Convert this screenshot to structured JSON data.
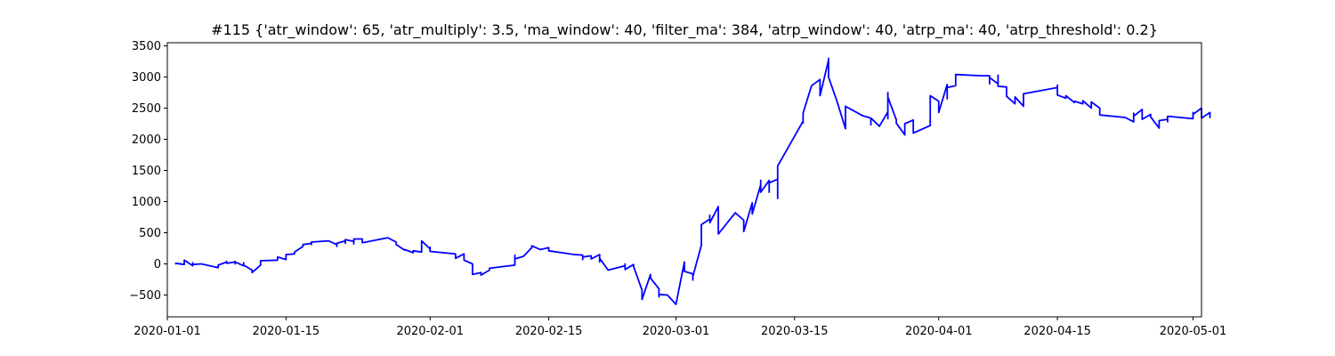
{
  "chart_data": {
    "type": "line",
    "title": "#115 {'atr_window': 65, 'atr_multiply': 3.5, 'ma_window': 40, 'filter_ma': 384, 'atrp_window': 40, 'atrp_ma': 40, 'atrp_threshold': 0.2}",
    "xlabel": "",
    "ylabel": "",
    "xlim": [
      "2020-01-01",
      "2020-05-02"
    ],
    "ylim": [
      -850,
      3550
    ],
    "grid": false,
    "x_ticks": [
      "2020-01-01",
      "2020-01-15",
      "2020-02-01",
      "2020-02-15",
      "2020-03-01",
      "2020-03-15",
      "2020-04-01",
      "2020-04-15",
      "2020-05-01"
    ],
    "y_ticks": [
      -500,
      0,
      500,
      1000,
      1500,
      2000,
      2500,
      3000,
      3500
    ],
    "colors": {
      "series": "#0000ff",
      "axis": "#000000",
      "background": "#ffffff"
    },
    "series": [
      {
        "color": "#0000ff",
        "points": [
          [
            "2020-01-02",
            0
          ],
          [
            "2020-01-02",
            10
          ],
          [
            "2020-01-03",
            -10
          ],
          [
            "2020-01-03",
            50
          ],
          [
            "2020-01-03",
            60
          ],
          [
            "2020-01-04",
            -30
          ],
          [
            "2020-01-04",
            20
          ],
          [
            "2020-01-04",
            -10
          ],
          [
            "2020-01-05",
            0
          ],
          [
            "2020-01-07",
            -60
          ],
          [
            "2020-01-07",
            -20
          ],
          [
            "2020-01-08",
            30
          ],
          [
            "2020-01-08",
            40
          ],
          [
            "2020-01-08",
            10
          ],
          [
            "2020-01-09",
            30
          ],
          [
            "2020-01-09",
            40
          ],
          [
            "2020-01-09",
            0
          ],
          [
            "2020-01-09",
            30
          ],
          [
            "2020-01-10",
            -30
          ],
          [
            "2020-01-10",
            20
          ],
          [
            "2020-01-10",
            -20
          ],
          [
            "2020-01-11",
            -100
          ],
          [
            "2020-01-11",
            -130
          ],
          [
            "2020-01-11",
            -140
          ],
          [
            "2020-01-12",
            -20
          ],
          [
            "2020-01-12",
            0
          ],
          [
            "2020-01-12",
            50
          ],
          [
            "2020-01-14",
            60
          ],
          [
            "2020-01-14",
            110
          ],
          [
            "2020-01-15",
            70
          ],
          [
            "2020-01-15",
            80
          ],
          [
            "2020-01-15",
            150
          ],
          [
            "2020-01-16",
            160
          ],
          [
            "2020-01-16",
            190
          ],
          [
            "2020-01-17",
            280
          ],
          [
            "2020-01-17",
            310
          ],
          [
            "2020-01-18",
            330
          ],
          [
            "2020-01-18",
            310
          ],
          [
            "2020-01-18",
            350
          ],
          [
            "2020-01-20",
            370
          ],
          [
            "2020-01-21",
            310
          ],
          [
            "2020-01-21",
            280
          ],
          [
            "2020-01-21",
            330
          ],
          [
            "2020-01-22",
            370
          ],
          [
            "2020-01-22",
            330
          ],
          [
            "2020-01-22",
            390
          ],
          [
            "2020-01-23",
            360
          ],
          [
            "2020-01-23",
            320
          ],
          [
            "2020-01-23",
            400
          ],
          [
            "2020-01-24",
            400
          ],
          [
            "2020-01-24",
            340
          ],
          [
            "2020-01-27",
            420
          ],
          [
            "2020-01-28",
            350
          ],
          [
            "2020-01-28",
            310
          ],
          [
            "2020-01-29",
            220
          ],
          [
            "2020-01-29",
            230
          ],
          [
            "2020-01-30",
            180
          ],
          [
            "2020-01-30",
            210
          ],
          [
            "2020-01-31",
            190
          ],
          [
            "2020-01-31",
            280
          ],
          [
            "2020-01-31",
            370
          ],
          [
            "2020-02-01",
            240
          ],
          [
            "2020-02-01",
            270
          ],
          [
            "2020-02-01",
            200
          ],
          [
            "2020-02-04",
            160
          ],
          [
            "2020-02-04",
            90
          ],
          [
            "2020-02-05",
            160
          ],
          [
            "2020-02-05",
            130
          ],
          [
            "2020-02-05",
            60
          ],
          [
            "2020-02-06",
            0
          ],
          [
            "2020-02-06",
            -100
          ],
          [
            "2020-02-06",
            -170
          ],
          [
            "2020-02-07",
            -140
          ],
          [
            "2020-02-07",
            -180
          ],
          [
            "2020-02-08",
            -100
          ],
          [
            "2020-02-08",
            -70
          ],
          [
            "2020-02-11",
            -20
          ],
          [
            "2020-02-11",
            120
          ],
          [
            "2020-02-11",
            140
          ],
          [
            "2020-02-11",
            80
          ],
          [
            "2020-02-12",
            120
          ],
          [
            "2020-02-13",
            260
          ],
          [
            "2020-02-13",
            290
          ],
          [
            "2020-02-14",
            230
          ],
          [
            "2020-02-15",
            260
          ],
          [
            "2020-02-15",
            210
          ],
          [
            "2020-02-18",
            150
          ],
          [
            "2020-02-19",
            140
          ],
          [
            "2020-02-19",
            70
          ],
          [
            "2020-02-19",
            110
          ],
          [
            "2020-02-20",
            130
          ],
          [
            "2020-02-20",
            80
          ],
          [
            "2020-02-21",
            150
          ],
          [
            "2020-02-21",
            30
          ],
          [
            "2020-02-21",
            90
          ],
          [
            "2020-02-22",
            -100
          ],
          [
            "2020-02-24",
            -30
          ],
          [
            "2020-02-24",
            0
          ],
          [
            "2020-02-24",
            -90
          ],
          [
            "2020-02-25",
            -10
          ],
          [
            "2020-02-25",
            -40
          ],
          [
            "2020-02-26",
            -420
          ],
          [
            "2020-02-26",
            -460
          ],
          [
            "2020-02-26",
            -570
          ],
          [
            "2020-02-27",
            -170
          ],
          [
            "2020-02-27",
            -230
          ],
          [
            "2020-02-28",
            -400
          ],
          [
            "2020-02-28",
            -530
          ],
          [
            "2020-02-28",
            -440
          ],
          [
            "2020-02-28",
            -490
          ],
          [
            "2020-02-29",
            -500
          ],
          [
            "2020-03-01",
            -650
          ],
          [
            "2020-03-02",
            30
          ],
          [
            "2020-03-02",
            -120
          ],
          [
            "2020-03-03",
            -160
          ],
          [
            "2020-03-03",
            -260
          ],
          [
            "2020-03-03",
            -200
          ],
          [
            "2020-03-04",
            300
          ],
          [
            "2020-03-04",
            350
          ],
          [
            "2020-03-04",
            380
          ],
          [
            "2020-03-04",
            630
          ],
          [
            "2020-03-05",
            720
          ],
          [
            "2020-03-05",
            780
          ],
          [
            "2020-03-05",
            660
          ],
          [
            "2020-03-06",
            920
          ],
          [
            "2020-03-06",
            800
          ],
          [
            "2020-03-06",
            480
          ],
          [
            "2020-03-08",
            820
          ],
          [
            "2020-03-09",
            700
          ],
          [
            "2020-03-09",
            520
          ],
          [
            "2020-03-10",
            980
          ],
          [
            "2020-03-10",
            800
          ],
          [
            "2020-03-11",
            1270
          ],
          [
            "2020-03-11",
            1340
          ],
          [
            "2020-03-11",
            1150
          ],
          [
            "2020-03-12",
            1340
          ],
          [
            "2020-03-12",
            1150
          ],
          [
            "2020-03-12",
            1300
          ],
          [
            "2020-03-13",
            1360
          ],
          [
            "2020-03-13",
            1100
          ],
          [
            "2020-03-13",
            1050
          ],
          [
            "2020-03-13",
            1570
          ],
          [
            "2020-03-16",
            2290
          ],
          [
            "2020-03-16",
            2260
          ],
          [
            "2020-03-16",
            2420
          ],
          [
            "2020-03-17",
            2860
          ],
          [
            "2020-03-18",
            2960
          ],
          [
            "2020-03-18",
            2700
          ],
          [
            "2020-03-19",
            3270
          ],
          [
            "2020-03-19",
            3300
          ],
          [
            "2020-03-19",
            3000
          ],
          [
            "2020-03-20",
            2610
          ],
          [
            "2020-03-21",
            2170
          ],
          [
            "2020-03-21",
            2250
          ],
          [
            "2020-03-21",
            2530
          ],
          [
            "2020-03-23",
            2380
          ],
          [
            "2020-03-24",
            2340
          ],
          [
            "2020-03-24",
            2230
          ],
          [
            "2020-03-24",
            2340
          ],
          [
            "2020-03-25",
            2210
          ],
          [
            "2020-03-26",
            2440
          ],
          [
            "2020-03-26",
            2330
          ],
          [
            "2020-03-26",
            2750
          ],
          [
            "2020-03-26",
            2680
          ],
          [
            "2020-03-27",
            2310
          ],
          [
            "2020-03-27",
            2260
          ],
          [
            "2020-03-28",
            2070
          ],
          [
            "2020-03-28",
            2250
          ],
          [
            "2020-03-29",
            2310
          ],
          [
            "2020-03-29",
            2100
          ],
          [
            "2020-03-31",
            2220
          ],
          [
            "2020-03-31",
            2520
          ],
          [
            "2020-03-31",
            2700
          ],
          [
            "2020-04-01",
            2610
          ],
          [
            "2020-04-01",
            2570
          ],
          [
            "2020-04-01",
            2430
          ],
          [
            "2020-04-02",
            2880
          ],
          [
            "2020-04-02",
            2650
          ],
          [
            "2020-04-02",
            2830
          ],
          [
            "2020-04-03",
            2860
          ],
          [
            "2020-04-03",
            3040
          ],
          [
            "2020-04-06",
            3020
          ],
          [
            "2020-04-07",
            3020
          ],
          [
            "2020-04-07",
            2890
          ],
          [
            "2020-04-07",
            2990
          ],
          [
            "2020-04-08",
            2890
          ],
          [
            "2020-04-08",
            3030
          ],
          [
            "2020-04-08",
            2850
          ],
          [
            "2020-04-09",
            2840
          ],
          [
            "2020-04-09",
            2690
          ],
          [
            "2020-04-10",
            2570
          ],
          [
            "2020-04-10",
            2590
          ],
          [
            "2020-04-10",
            2680
          ],
          [
            "2020-04-11",
            2530
          ],
          [
            "2020-04-11",
            2730
          ],
          [
            "2020-04-15",
            2830
          ],
          [
            "2020-04-15",
            2870
          ],
          [
            "2020-04-15",
            2820
          ],
          [
            "2020-04-15",
            2710
          ],
          [
            "2020-04-16",
            2660
          ],
          [
            "2020-04-16",
            2700
          ],
          [
            "2020-04-17",
            2590
          ],
          [
            "2020-04-17",
            2610
          ],
          [
            "2020-04-18",
            2570
          ],
          [
            "2020-04-18",
            2620
          ],
          [
            "2020-04-19",
            2500
          ],
          [
            "2020-04-19",
            2600
          ],
          [
            "2020-04-19",
            2600
          ],
          [
            "2020-04-20",
            2500
          ],
          [
            "2020-04-20",
            2390
          ],
          [
            "2020-04-23",
            2350
          ],
          [
            "2020-04-24",
            2280
          ],
          [
            "2020-04-24",
            2420
          ],
          [
            "2020-04-24",
            2370
          ],
          [
            "2020-04-25",
            2480
          ],
          [
            "2020-04-25",
            2320
          ],
          [
            "2020-04-26",
            2400
          ],
          [
            "2020-04-26",
            2380
          ],
          [
            "2020-04-26",
            2360
          ],
          [
            "2020-04-27",
            2180
          ],
          [
            "2020-04-27",
            2300
          ],
          [
            "2020-04-28",
            2320
          ],
          [
            "2020-04-28",
            2280
          ],
          [
            "2020-04-28",
            2370
          ],
          [
            "2020-05-01",
            2330
          ],
          [
            "2020-05-01",
            2430
          ],
          [
            "2020-05-01",
            2400
          ],
          [
            "2020-05-02",
            2500
          ],
          [
            "2020-05-02",
            2380
          ],
          [
            "2020-05-02",
            2480
          ],
          [
            "2020-05-02",
            2340
          ],
          [
            "2020-05-03",
            2430
          ],
          [
            "2020-05-03",
            2350
          ]
        ]
      }
    ]
  }
}
